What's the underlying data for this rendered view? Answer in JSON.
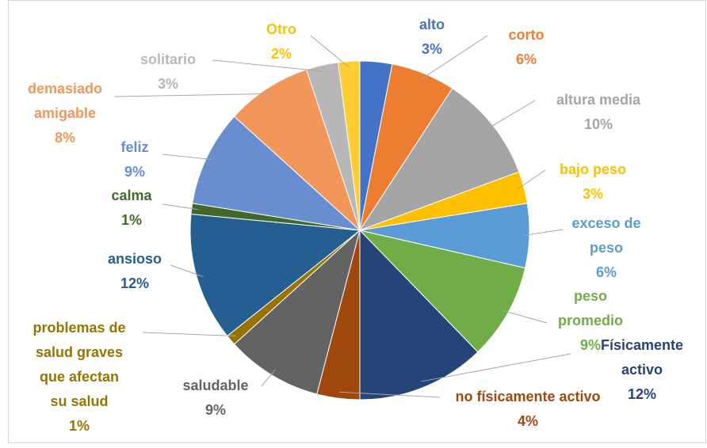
{
  "chart_data": {
    "type": "pie",
    "categories": [
      "alto",
      "corto",
      "altura media",
      "bajo peso",
      "exceso de peso",
      "peso promedio",
      "Físicamente activo",
      "no físicamente activo",
      "saludable",
      "problemas de salud graves que afectan su salud",
      "ansioso",
      "calma",
      "feliz",
      "demasiado amigable",
      "solitario",
      "Otro"
    ],
    "values": [
      3,
      6,
      10,
      3,
      6,
      9,
      12,
      4,
      9,
      1,
      12,
      1,
      9,
      8,
      3,
      2
    ],
    "value_labels": [
      "3%",
      "6%",
      "10%",
      "3%",
      "6%",
      "9%",
      "12%",
      "4%",
      "9%",
      "1%",
      "12%",
      "1%",
      "9%",
      "8%",
      "3%",
      "2%"
    ],
    "colors": [
      "#4472c4",
      "#ed7d31",
      "#a5a5a5",
      "#ffc000",
      "#5b9bd5",
      "#70ad47",
      "#264478",
      "#9e480e",
      "#636363",
      "#997300",
      "#255e91",
      "#43682b",
      "#698ed0",
      "#f1975a",
      "#b7b7b7",
      "#ffcd33"
    ]
  }
}
